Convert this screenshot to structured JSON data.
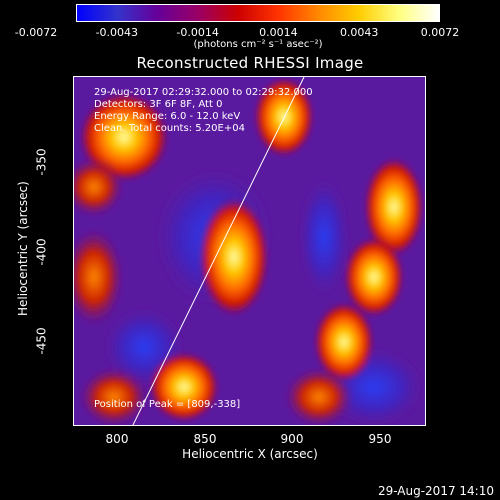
{
  "colorbar": {
    "colors": [
      "#0000ff",
      "#3333cc",
      "#660099",
      "#990066",
      "#cc0000",
      "#ff3300",
      "#ff8800",
      "#ffcc00",
      "#ffff80",
      "#ffffff"
    ],
    "ticks": [
      "-0.0072",
      "-0.0043",
      "-0.0014",
      "0.0014",
      "0.0043",
      "0.0072"
    ],
    "unit_label": "(photons cm⁻² s⁻¹ asec⁻²)"
  },
  "title": "Reconstructed RHESSI Image",
  "info_lines": [
    "29-Aug-2017 02:29:32.000 to 02:29:32.000",
    "Detectors: 3F 6F 8F, Att 0",
    "Energy Range: 6.0 - 12.0 keV",
    "Clean. Total counts: 5.20E+04"
  ],
  "peak_text": "Position of Peak = [809,-338]",
  "x_ticks": [
    "800",
    "850",
    "900",
    "950"
  ],
  "y_ticks": [
    "-350",
    "-400",
    "-450"
  ],
  "x_label": "Heliocentric X (arcsec)",
  "y_label": "Heliocentric Y (arcsec)",
  "footer": "29-Aug-2017 14:10"
}
